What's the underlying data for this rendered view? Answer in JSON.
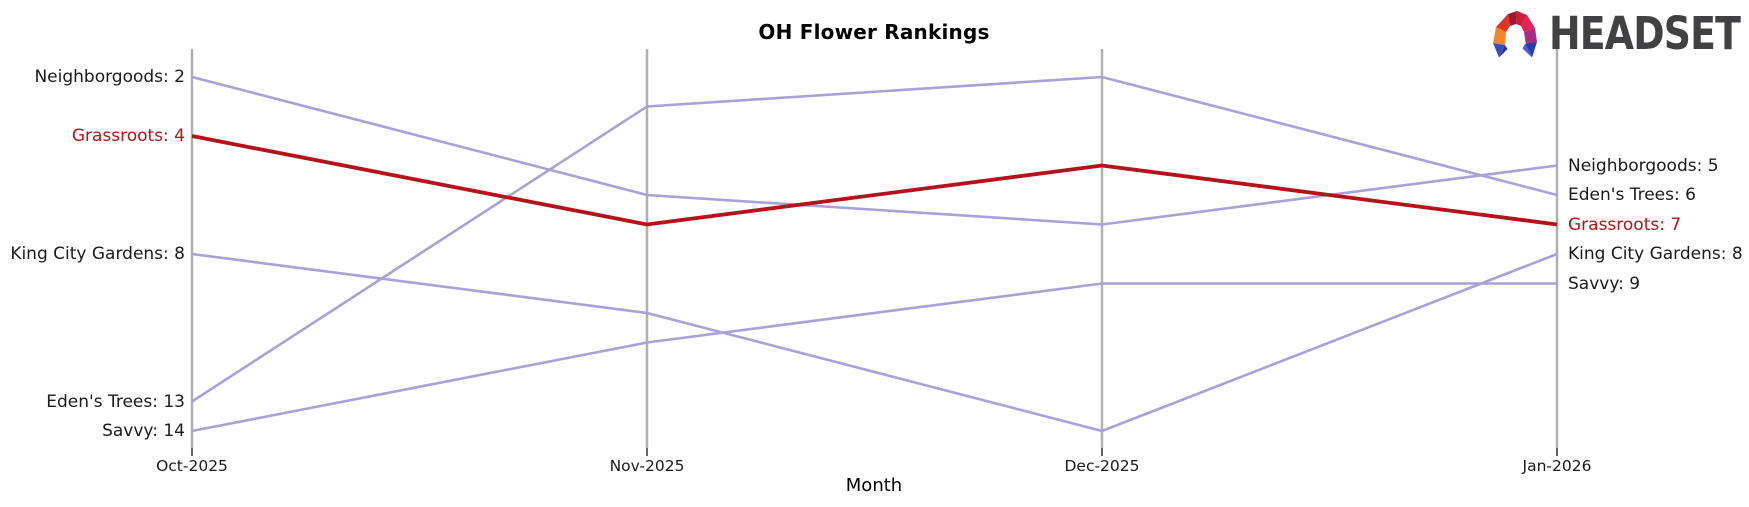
{
  "header": {
    "brand": "HEADSET",
    "brand_color": "#414042"
  },
  "chart_data": {
    "type": "line",
    "subtype": "bump-ranking",
    "title": "OH Flower Rankings",
    "xlabel": "Month",
    "ylabel": "",
    "categories": [
      "Oct-2025",
      "Nov-2025",
      "Dec-2025",
      "Jan-2026"
    ],
    "y_is_rank": true,
    "y_axis_inverted": true,
    "rank_range": [
      1,
      14
    ],
    "grid": "vertical-axes-only",
    "legend_position": "inline-edge-labels",
    "series": [
      {
        "name": "Neighborgoods",
        "values": [
          2,
          6,
          7,
          5
        ],
        "highlight": false
      },
      {
        "name": "Grassroots",
        "values": [
          4,
          7,
          5,
          7
        ],
        "highlight": true
      },
      {
        "name": "King City Gardens",
        "values": [
          8,
          10,
          14,
          8
        ],
        "highlight": false
      },
      {
        "name": "Eden's Trees",
        "values": [
          13,
          3,
          2,
          6
        ],
        "highlight": false
      },
      {
        "name": "Savvy",
        "values": [
          14,
          11,
          9,
          9
        ],
        "highlight": false
      }
    ],
    "left_labels": [
      {
        "text": "Neighborgoods: 2",
        "rank": 2,
        "highlight": false
      },
      {
        "text": "Grassroots: 4",
        "rank": 4,
        "highlight": true
      },
      {
        "text": "King City Gardens: 8",
        "rank": 8,
        "highlight": false
      },
      {
        "text": "Eden's Trees: 13",
        "rank": 13,
        "highlight": false
      },
      {
        "text": "Savvy: 14",
        "rank": 14,
        "highlight": false
      }
    ],
    "right_labels": [
      {
        "text": "Neighborgoods: 5",
        "rank": 5,
        "highlight": false
      },
      {
        "text": "Eden's Trees: 6",
        "rank": 6,
        "highlight": false
      },
      {
        "text": "Grassroots: 7",
        "rank": 7,
        "highlight": true
      },
      {
        "text": "King City Gardens: 8",
        "rank": 8,
        "highlight": false
      },
      {
        "text": "Savvy: 9",
        "rank": 9,
        "highlight": false
      }
    ],
    "colors": {
      "line": "#a9a1d8",
      "highlight": "#b5121a",
      "axis": "#b0b0b0",
      "tick": "#222222",
      "text": "#1a1a1a"
    }
  }
}
